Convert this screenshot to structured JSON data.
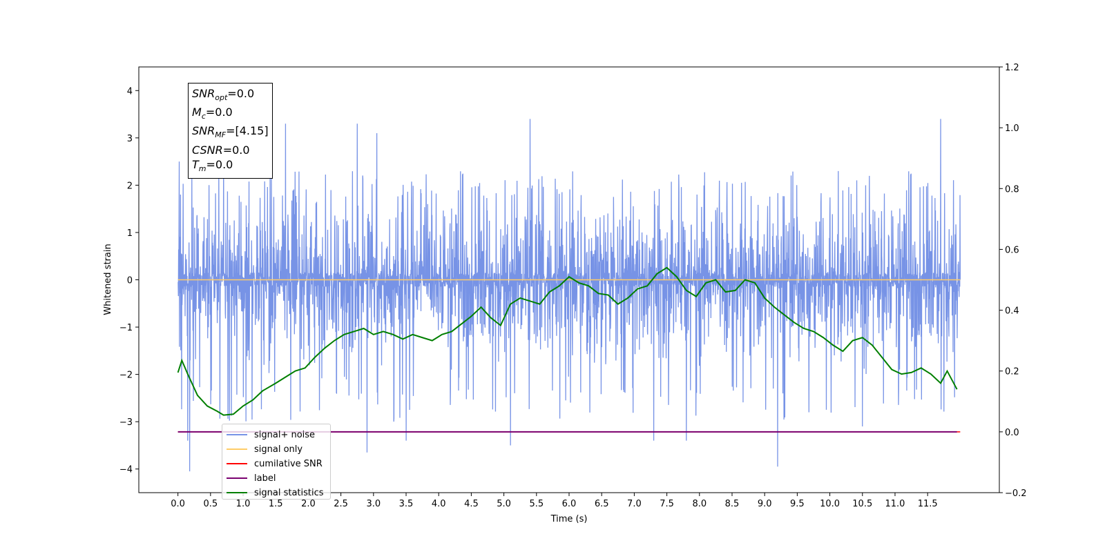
{
  "chart_data": {
    "type": "line",
    "xlabel": "Time (s)",
    "ylabel_left": "Whitened strain",
    "ylabel_right": "",
    "xlim": [
      -0.6,
      12.6
    ],
    "ylim_left": [
      -4.5,
      4.5
    ],
    "ylim_right": [
      -0.2,
      1.2
    ],
    "x_ticks": [
      "0.0",
      "0.5",
      "1.0",
      "1.5",
      "2.0",
      "2.5",
      "3.0",
      "3.5",
      "4.0",
      "4.5",
      "5.0",
      "5.5",
      "6.0",
      "6.5",
      "7.0",
      "7.5",
      "8.0",
      "8.5",
      "9.0",
      "9.5",
      "10.0",
      "10.5",
      "11.0",
      "11.5"
    ],
    "y_ticks_left": [
      "4",
      "3",
      "2",
      "1",
      "0",
      "−1",
      "−2",
      "−3",
      "−4"
    ],
    "y_ticks_right": [
      "1.2",
      "1.0",
      "0.8",
      "0.6",
      "0.4",
      "0.2",
      "0.0",
      "−0.2"
    ],
    "grid": false,
    "legend_position": "lower-left",
    "annotation": {
      "lines": [
        {
          "symbol": "SNR",
          "subscript": "opt",
          "value": "=0.0"
        },
        {
          "symbol": "M",
          "subscript": "c",
          "value": "=0.0"
        },
        {
          "symbol": "SNR",
          "subscript": "MF",
          "value": "=[4.15]"
        },
        {
          "symbol": "CSNR",
          "subscript": "",
          "value": "=0.0"
        },
        {
          "symbol": "T",
          "subscript": "m",
          "value": "=0.0"
        }
      ]
    },
    "series": [
      {
        "name": "signal+ noise",
        "color": "#7793e6",
        "axis": "left",
        "style": "dense noise",
        "x_range": [
          0.0,
          12.0
        ],
        "envelope_low": -3.0,
        "envelope_high": 2.3,
        "peaks": [
          [
            0.02,
            2.5
          ],
          [
            0.7,
            2.6
          ],
          [
            1.65,
            3.3
          ],
          [
            2.75,
            3.3
          ],
          [
            3.05,
            3.1
          ],
          [
            5.4,
            3.4
          ],
          [
            11.7,
            3.4
          ],
          [
            0.15,
            -3.4
          ],
          [
            0.18,
            -4.05
          ],
          [
            2.9,
            -3.65
          ],
          [
            3.5,
            -3.4
          ],
          [
            5.1,
            -3.5
          ],
          [
            7.3,
            -3.4
          ],
          [
            7.8,
            -3.4
          ],
          [
            9.2,
            -3.95
          ],
          [
            10.5,
            -3.1
          ]
        ]
      },
      {
        "name": "signal only",
        "color": "#ffcc66",
        "axis": "left",
        "x": [
          0.0,
          12.0
        ],
        "y": [
          0.0,
          0.0
        ]
      },
      {
        "name": "cumilative SNR",
        "color": "#ff0000",
        "axis": "right",
        "x": [
          0.0,
          12.0
        ],
        "y": [
          0.0,
          0.0
        ]
      },
      {
        "name": "label",
        "color": "#7a006f",
        "axis": "right",
        "x": [
          0.0,
          11.95
        ],
        "y": [
          0.0,
          0.0
        ]
      },
      {
        "name": "signal statistics",
        "color": "#007f00",
        "axis": "right",
        "x": [
          0.0,
          0.06,
          0.15,
          0.3,
          0.45,
          0.6,
          0.7,
          0.85,
          1.0,
          1.15,
          1.3,
          1.5,
          1.65,
          1.8,
          1.95,
          2.1,
          2.25,
          2.4,
          2.55,
          2.7,
          2.85,
          3.0,
          3.15,
          3.3,
          3.45,
          3.6,
          3.75,
          3.9,
          4.05,
          4.2,
          4.35,
          4.5,
          4.65,
          4.8,
          4.95,
          5.1,
          5.25,
          5.4,
          5.55,
          5.7,
          5.85,
          6.0,
          6.15,
          6.3,
          6.45,
          6.6,
          6.75,
          6.9,
          7.05,
          7.2,
          7.35,
          7.5,
          7.65,
          7.8,
          7.95,
          8.1,
          8.25,
          8.4,
          8.55,
          8.7,
          8.85,
          9.0,
          9.15,
          9.3,
          9.45,
          9.6,
          9.75,
          9.9,
          10.05,
          10.2,
          10.35,
          10.5,
          10.65,
          10.8,
          10.95,
          11.1,
          11.25,
          11.4,
          11.55,
          11.7,
          11.8,
          11.95
        ],
        "y": [
          0.195,
          0.235,
          0.19,
          0.12,
          0.085,
          0.068,
          0.055,
          0.058,
          0.085,
          0.105,
          0.135,
          0.16,
          0.18,
          0.2,
          0.21,
          0.245,
          0.275,
          0.3,
          0.32,
          0.33,
          0.34,
          0.32,
          0.33,
          0.32,
          0.305,
          0.32,
          0.31,
          0.3,
          0.32,
          0.33,
          0.355,
          0.38,
          0.41,
          0.375,
          0.35,
          0.42,
          0.44,
          0.43,
          0.42,
          0.46,
          0.48,
          0.51,
          0.49,
          0.48,
          0.455,
          0.45,
          0.42,
          0.44,
          0.47,
          0.48,
          0.52,
          0.54,
          0.51,
          0.465,
          0.445,
          0.49,
          0.5,
          0.46,
          0.465,
          0.5,
          0.49,
          0.44,
          0.41,
          0.385,
          0.36,
          0.34,
          0.33,
          0.31,
          0.285,
          0.265,
          0.3,
          0.31,
          0.285,
          0.245,
          0.205,
          0.19,
          0.195,
          0.21,
          0.19,
          0.16,
          0.2,
          0.14
        ]
      }
    ]
  }
}
